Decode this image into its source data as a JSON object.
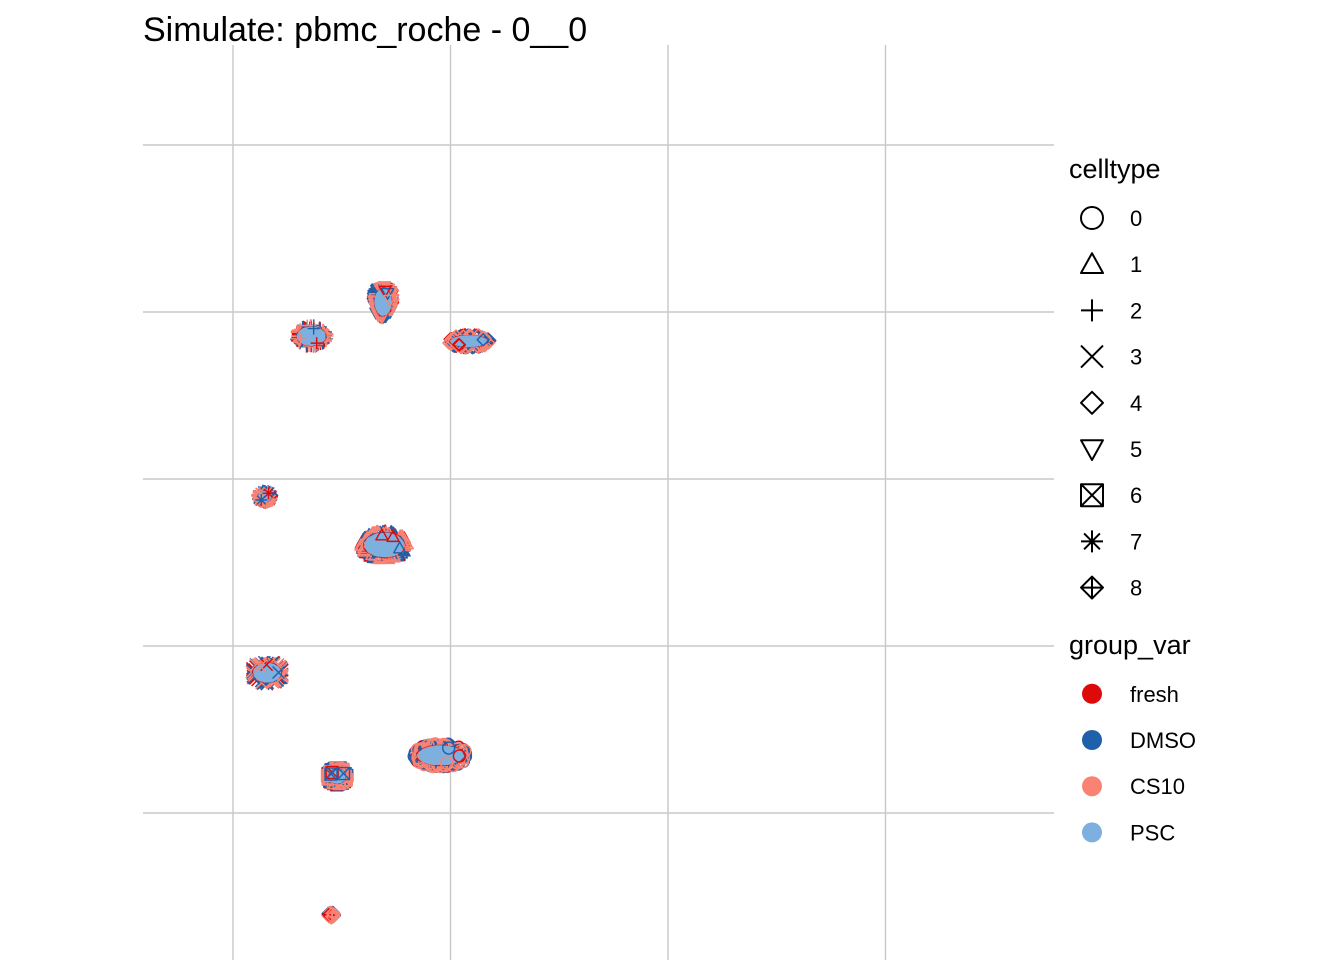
{
  "chart_data": {
    "type": "scatter",
    "title": "Simulate: pbmc_roche - 0__0",
    "xlabel": "",
    "ylabel": "",
    "grid": true,
    "legend_position": "right",
    "x_gridlines": 4,
    "y_gridlines": 5,
    "legends": [
      {
        "title": "celltype",
        "kind": "shape",
        "entries": [
          {
            "label": "0",
            "shape": "circle"
          },
          {
            "label": "1",
            "shape": "triangle-up"
          },
          {
            "label": "2",
            "shape": "plus"
          },
          {
            "label": "3",
            "shape": "cross"
          },
          {
            "label": "4",
            "shape": "diamond"
          },
          {
            "label": "5",
            "shape": "triangle-down"
          },
          {
            "label": "6",
            "shape": "square-cross"
          },
          {
            "label": "7",
            "shape": "asterisk"
          },
          {
            "label": "8",
            "shape": "diamond-plus"
          }
        ]
      },
      {
        "title": "group_var",
        "kind": "color",
        "entries": [
          {
            "label": "fresh",
            "color": "#DE0A0A"
          },
          {
            "label": "DMSO",
            "color": "#1F60AA"
          },
          {
            "label": "CS10",
            "color": "#F98273"
          },
          {
            "label": "PSC",
            "color": "#7DAFDF"
          }
        ]
      }
    ],
    "series": [
      {
        "name": "fresh",
        "color": "#DE0A0A"
      },
      {
        "name": "DMSO",
        "color": "#1F60AA"
      },
      {
        "name": "CS10",
        "color": "#F98273"
      },
      {
        "name": "PSC",
        "color": "#7DAFDF"
      }
    ],
    "clusters": [
      {
        "celltype": "0",
        "shape": "circle",
        "cx": 0.955,
        "cy": 0.345,
        "rx": 0.115,
        "ry": 0.065
      },
      {
        "celltype": "1",
        "shape": "triangle-up",
        "cx": 0.695,
        "cy": 1.605,
        "rx": 0.1,
        "ry": 0.08
      },
      {
        "celltype": "2",
        "shape": "plus",
        "cx": 0.36,
        "cy": 2.855,
        "rx": 0.072,
        "ry": 0.062
      },
      {
        "celltype": "3",
        "shape": "cross",
        "cx": 0.157,
        "cy": 0.84,
        "rx": 0.07,
        "ry": 0.064
      },
      {
        "celltype": "4",
        "shape": "diamond",
        "cx": 1.085,
        "cy": 2.825,
        "rx": 0.092,
        "ry": 0.038
      },
      {
        "celltype": "5",
        "shape": "triangle-down",
        "cx": 0.69,
        "cy": 3.06,
        "rx": 0.043,
        "ry": 0.09
      },
      {
        "celltype": "6",
        "shape": "square-cross",
        "cx": 0.48,
        "cy": 0.22,
        "rx": 0.042,
        "ry": 0.048
      },
      {
        "celltype": "7",
        "shape": "asterisk",
        "cx": 0.146,
        "cy": 1.895,
        "rx": 0.033,
        "ry": 0.036
      },
      {
        "celltype": "8",
        "shape": "diamond-plus",
        "cx": 0.451,
        "cy": -0.61,
        "rx": 0.014,
        "ry": 0.016
      }
    ]
  }
}
